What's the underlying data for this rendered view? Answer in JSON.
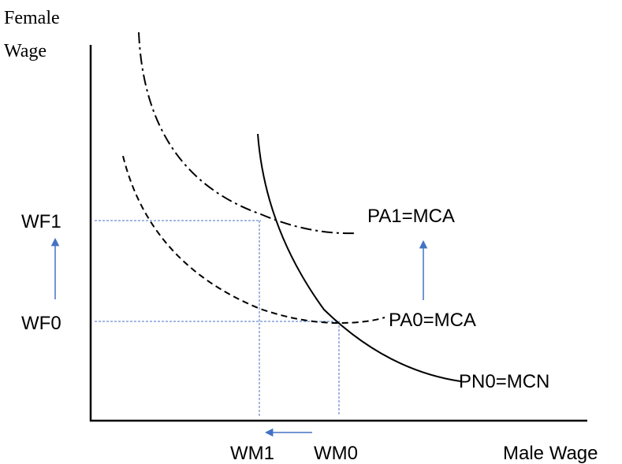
{
  "axes": {
    "y_title_line1": "Female",
    "y_title_line2": "Wage",
    "x_title": "Male Wage"
  },
  "labels": {
    "wf1": "WF1",
    "wf0": "WF0",
    "wm1": "WM1",
    "wm0": "WM0",
    "pa1": "PA1=MCA",
    "pa0": "PA0=MCA",
    "pn0": "PN0=MCN"
  },
  "colors": {
    "curve": "#000000",
    "guide": "#4472c4",
    "arrow": "#4472c4"
  }
}
